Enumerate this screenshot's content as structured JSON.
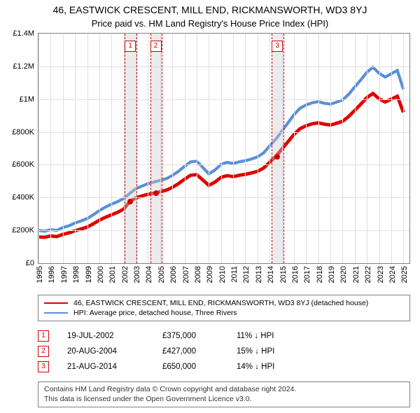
{
  "title": "46, EASTWICK CRESCENT, MILL END, RICKMANSWORTH, WD3 8YJ",
  "subtitle": "Price paid vs. HM Land Registry's House Price Index (HPI)",
  "chart": {
    "type": "line",
    "x_range": [
      1995,
      2025.5
    ],
    "y_range": [
      0,
      1400000
    ],
    "y_ticks": [
      0,
      200000,
      400000,
      600000,
      800000,
      1000000,
      1200000,
      1400000
    ],
    "y_tick_labels": [
      "£0",
      "£200K",
      "£400K",
      "£600K",
      "£800K",
      "£1M",
      "£1.2M",
      "£1.4M"
    ],
    "x_ticks": [
      1995,
      1996,
      1997,
      1998,
      1999,
      2000,
      2001,
      2002,
      2003,
      2004,
      2005,
      2006,
      2007,
      2008,
      2009,
      2010,
      2011,
      2012,
      2013,
      2014,
      2015,
      2016,
      2017,
      2018,
      2019,
      2020,
      2021,
      2022,
      2023,
      2024,
      2025
    ],
    "background_color": "#ffffff",
    "grid_color": "#e0e0e0",
    "border_color": "#808080",
    "series": [
      {
        "key": "hpi",
        "label": "HPI: Average price, detached house, Three Rivers",
        "color": "#5b8fd6",
        "width": 1.4,
        "points": [
          [
            1995.0,
            200000
          ],
          [
            1995.5,
            195000
          ],
          [
            1996.0,
            205000
          ],
          [
            1996.5,
            200000
          ],
          [
            1997.0,
            218000
          ],
          [
            1997.5,
            228000
          ],
          [
            1998.0,
            245000
          ],
          [
            1998.5,
            258000
          ],
          [
            1999.0,
            272000
          ],
          [
            1999.5,
            295000
          ],
          [
            2000.0,
            320000
          ],
          [
            2000.5,
            342000
          ],
          [
            2001.0,
            360000
          ],
          [
            2001.5,
            375000
          ],
          [
            2002.0,
            395000
          ],
          [
            2002.5,
            425000
          ],
          [
            2003.0,
            455000
          ],
          [
            2003.5,
            470000
          ],
          [
            2004.0,
            485000
          ],
          [
            2004.5,
            495000
          ],
          [
            2005.0,
            505000
          ],
          [
            2005.5,
            515000
          ],
          [
            2006.0,
            535000
          ],
          [
            2006.5,
            560000
          ],
          [
            2007.0,
            590000
          ],
          [
            2007.5,
            618000
          ],
          [
            2008.0,
            622000
          ],
          [
            2008.5,
            585000
          ],
          [
            2009.0,
            545000
          ],
          [
            2009.5,
            568000
          ],
          [
            2010.0,
            602000
          ],
          [
            2010.5,
            615000
          ],
          [
            2011.0,
            608000
          ],
          [
            2011.5,
            618000
          ],
          [
            2012.0,
            625000
          ],
          [
            2012.5,
            635000
          ],
          [
            2013.0,
            648000
          ],
          [
            2013.5,
            672000
          ],
          [
            2014.0,
            715000
          ],
          [
            2014.5,
            755000
          ],
          [
            2015.0,
            805000
          ],
          [
            2015.5,
            855000
          ],
          [
            2016.0,
            905000
          ],
          [
            2016.5,
            945000
          ],
          [
            2017.0,
            965000
          ],
          [
            2017.5,
            978000
          ],
          [
            2018.0,
            985000
          ],
          [
            2018.5,
            975000
          ],
          [
            2019.0,
            970000
          ],
          [
            2019.5,
            982000
          ],
          [
            2020.0,
            995000
          ],
          [
            2020.5,
            1030000
          ],
          [
            2021.0,
            1075000
          ],
          [
            2021.5,
            1118000
          ],
          [
            2022.0,
            1165000
          ],
          [
            2022.5,
            1195000
          ],
          [
            2023.0,
            1158000
          ],
          [
            2023.5,
            1135000
          ],
          [
            2024.0,
            1155000
          ],
          [
            2024.5,
            1175000
          ],
          [
            2025.0,
            1060000
          ]
        ]
      },
      {
        "key": "property",
        "label": "46, EASTWICK CRESCENT, MILL END, RICKMANSWORTH, WD3 8YJ (detached house)",
        "color": "#e00000",
        "width": 1.6,
        "points": [
          [
            1995.0,
            160000
          ],
          [
            1995.5,
            158000
          ],
          [
            1996.0,
            166000
          ],
          [
            1996.5,
            162000
          ],
          [
            1997.0,
            176000
          ],
          [
            1997.5,
            185000
          ],
          [
            1998.0,
            198000
          ],
          [
            1998.5,
            209000
          ],
          [
            1999.0,
            220000
          ],
          [
            1999.5,
            240000
          ],
          [
            2000.0,
            262000
          ],
          [
            2000.5,
            280000
          ],
          [
            2001.0,
            295000
          ],
          [
            2001.5,
            310000
          ],
          [
            2002.0,
            330000
          ],
          [
            2002.5,
            375000
          ],
          [
            2003.0,
            398000
          ],
          [
            2003.5,
            410000
          ],
          [
            2004.0,
            420000
          ],
          [
            2004.5,
            427000
          ],
          [
            2005.0,
            436000
          ],
          [
            2005.5,
            445000
          ],
          [
            2006.0,
            462000
          ],
          [
            2006.5,
            485000
          ],
          [
            2007.0,
            512000
          ],
          [
            2007.5,
            536000
          ],
          [
            2008.0,
            540000
          ],
          [
            2008.5,
            508000
          ],
          [
            2009.0,
            475000
          ],
          [
            2009.5,
            494000
          ],
          [
            2010.0,
            523000
          ],
          [
            2010.5,
            534000
          ],
          [
            2011.0,
            528000
          ],
          [
            2011.5,
            536000
          ],
          [
            2012.0,
            542000
          ],
          [
            2012.5,
            550000
          ],
          [
            2013.0,
            560000
          ],
          [
            2013.5,
            580000
          ],
          [
            2014.0,
            615000
          ],
          [
            2014.5,
            650000
          ],
          [
            2015.0,
            695000
          ],
          [
            2015.5,
            740000
          ],
          [
            2016.0,
            785000
          ],
          [
            2016.5,
            820000
          ],
          [
            2017.0,
            838000
          ],
          [
            2017.5,
            850000
          ],
          [
            2018.0,
            856000
          ],
          [
            2018.5,
            848000
          ],
          [
            2019.0,
            843000
          ],
          [
            2019.5,
            853000
          ],
          [
            2020.0,
            865000
          ],
          [
            2020.5,
            895000
          ],
          [
            2021.0,
            932000
          ],
          [
            2021.5,
            970000
          ],
          [
            2022.0,
            1010000
          ],
          [
            2022.5,
            1035000
          ],
          [
            2023.0,
            1002000
          ],
          [
            2023.5,
            983000
          ],
          [
            2024.0,
            1000000
          ],
          [
            2024.5,
            1018000
          ],
          [
            2025.0,
            920000
          ]
        ]
      }
    ],
    "markers": [
      {
        "num": "1",
        "x": 2002.55,
        "y": 375000,
        "band_half": 0.45
      },
      {
        "num": "2",
        "x": 2004.64,
        "y": 427000,
        "band_half": 0.45
      },
      {
        "num": "3",
        "x": 2014.64,
        "y": 650000,
        "band_half": 0.45
      }
    ],
    "marker_color": "#d00000"
  },
  "legend": {
    "items": [
      {
        "color": "#e00000",
        "label": "46, EASTWICK CRESCENT, MILL END, RICKMANSWORTH, WD3 8YJ (detached house)"
      },
      {
        "color": "#5b8fd6",
        "label": "HPI: Average price, detached house, Three Rivers"
      }
    ]
  },
  "sales": [
    {
      "num": "1",
      "date": "19-JUL-2002",
      "price": "£375,000",
      "diff": "11% ↓ HPI"
    },
    {
      "num": "2",
      "date": "20-AUG-2004",
      "price": "£427,000",
      "diff": "15% ↓ HPI"
    },
    {
      "num": "3",
      "date": "21-AUG-2014",
      "price": "£650,000",
      "diff": "14% ↓ HPI"
    }
  ],
  "footer": {
    "line1": "Contains HM Land Registry data © Crown copyright and database right 2024.",
    "line2": "This data is licensed under the Open Government Licence v3.0."
  }
}
